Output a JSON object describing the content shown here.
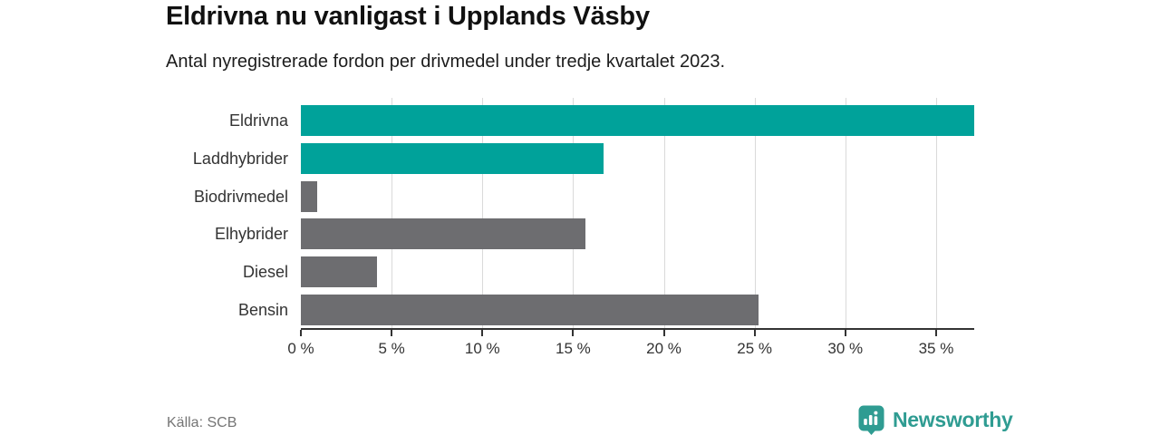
{
  "header": {
    "title": "Eldrivna nu vanligast i Upplands Väsby",
    "subtitle": "Antal nyregistrerade fordon per drivmedel under tredje kvartalet 2023."
  },
  "footer": {
    "source": "Källa: SCB",
    "brand": {
      "name": "Newsworthy",
      "icon": "bar-chart-pin-icon",
      "color": "#2f9c92"
    }
  },
  "colors": {
    "highlight": "#00a29a",
    "neutral": "#6d6d70",
    "grid": "#dadada",
    "axis": "#333333",
    "tick_text": "#333333"
  },
  "chart_data": {
    "type": "bar",
    "orientation": "horizontal",
    "title": "Eldrivna nu vanligast i Upplands Väsby",
    "subtitle": "Antal nyregistrerade fordon per drivmedel under tredje kvartalet 2023.",
    "categories": [
      "Eldrivna",
      "Laddhybrider",
      "Biodrivmedel",
      "Elhybrider",
      "Diesel",
      "Bensin"
    ],
    "values": [
      37.1,
      16.7,
      0.9,
      15.7,
      4.2,
      25.2
    ],
    "unit": "%",
    "bar_colors": [
      "#00a29a",
      "#00a29a",
      "#6d6d70",
      "#6d6d70",
      "#6d6d70",
      "#6d6d70"
    ],
    "xlim": [
      0,
      37.1
    ],
    "x_tick_values": [
      0,
      5,
      10,
      15,
      20,
      25,
      30,
      35
    ],
    "x_tick_labels": [
      "0 %",
      "5 %",
      "10 %",
      "15 %",
      "20 %",
      "25 %",
      "30 %",
      "35 %"
    ],
    "grid": true,
    "legend": false
  }
}
